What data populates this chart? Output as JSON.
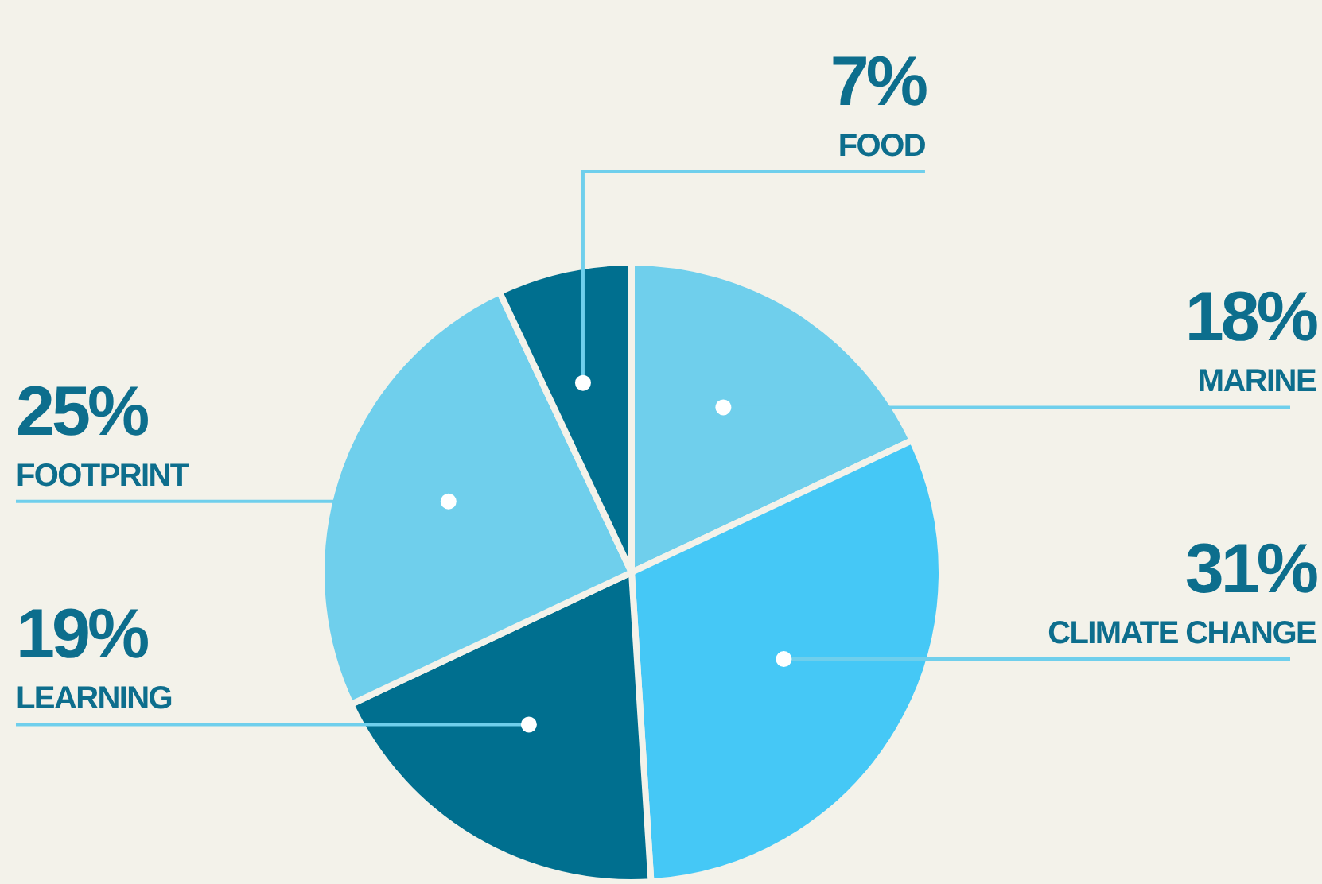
{
  "chart_data": {
    "type": "pie",
    "categories": [
      "MARINE",
      "CLIMATE CHANGE",
      "LEARNING",
      "FOOTPRINT",
      "FOOD"
    ],
    "values": [
      18,
      31,
      19,
      25,
      7
    ],
    "value_labels": [
      "18%",
      "31%",
      "19%",
      "25%",
      "7%"
    ],
    "colors": [
      "#6fcfec",
      "#45c8f6",
      "#006f8f",
      "#6fcfec",
      "#006f8f"
    ]
  }
}
